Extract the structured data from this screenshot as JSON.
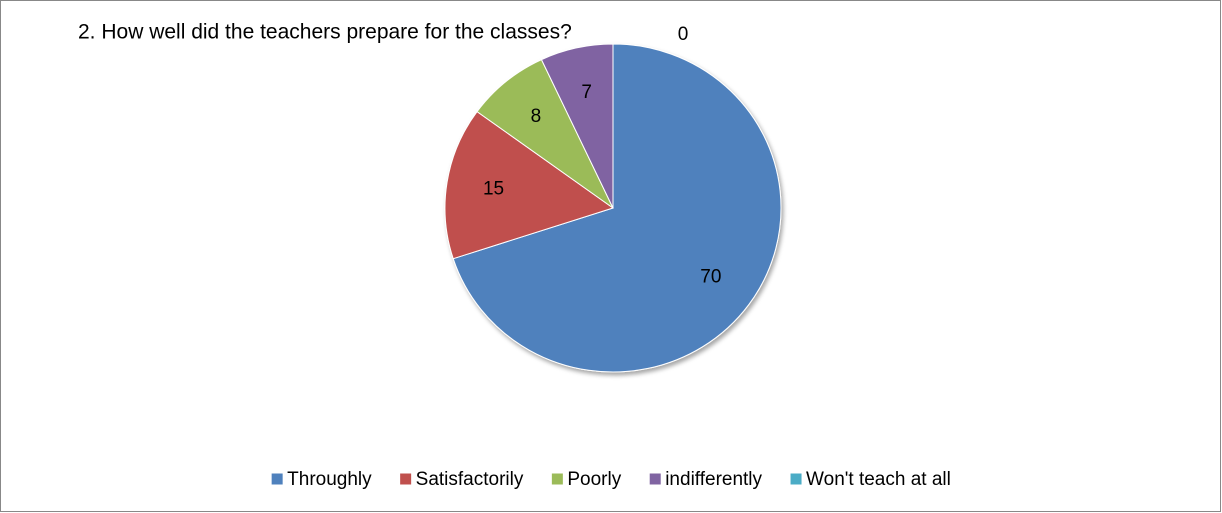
{
  "chart_data": {
    "type": "pie",
    "title": "2. How well did the teachers prepare for the classes?",
    "categories": [
      "Throughly",
      "Satisfactorily",
      "Poorly",
      "indifferently",
      "Won't teach at all"
    ],
    "values": [
      70,
      15,
      8,
      7,
      0
    ],
    "colors": [
      "#4f81bd",
      "#c0504d",
      "#9bbb59",
      "#8064a2",
      "#4bacc6"
    ],
    "legend": "bottom"
  }
}
